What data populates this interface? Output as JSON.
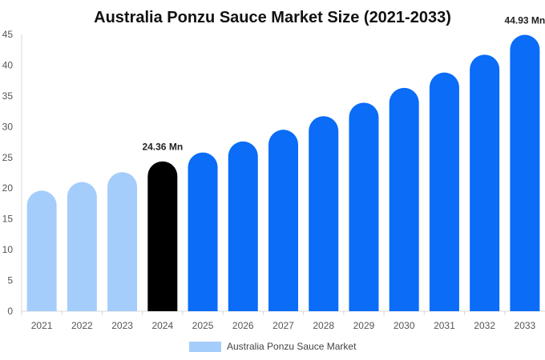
{
  "chart_data": {
    "type": "bar",
    "title": "Australia Ponzu Sauce Market Size (2021-2033)",
    "categories": [
      "2021",
      "2022",
      "2023",
      "2024",
      "2025",
      "2026",
      "2027",
      "2028",
      "2029",
      "2030",
      "2031",
      "2032",
      "2033"
    ],
    "series": [
      {
        "name": "Australia Ponzu Sauce Market",
        "values": [
          19.6,
          21.0,
          22.6,
          24.36,
          25.8,
          27.6,
          29.5,
          31.7,
          33.9,
          36.3,
          38.8,
          41.7,
          44.93
        ]
      }
    ],
    "bar_colors": [
      "#a4cdfb",
      "#a4cdfb",
      "#a4cdfb",
      "#000000",
      "#0a6cf7",
      "#0a6cf7",
      "#0a6cf7",
      "#0a6cf7",
      "#0a6cf7",
      "#0a6cf7",
      "#0a6cf7",
      "#0a6cf7",
      "#0a6cf7"
    ],
    "data_labels": [
      {
        "index": 3,
        "text": "24.36 Mn"
      },
      {
        "index": 12,
        "text": "44.93 Mn"
      }
    ],
    "ylim": [
      0,
      45
    ],
    "yticks": [
      0,
      5,
      10,
      15,
      20,
      25,
      30,
      35,
      40,
      45
    ],
    "xlabel": "",
    "ylabel": "",
    "grid": false,
    "legend": {
      "position": "bottom",
      "label": "Australia Ponzu Sauce Market",
      "color": "#a4cdfb"
    }
  }
}
